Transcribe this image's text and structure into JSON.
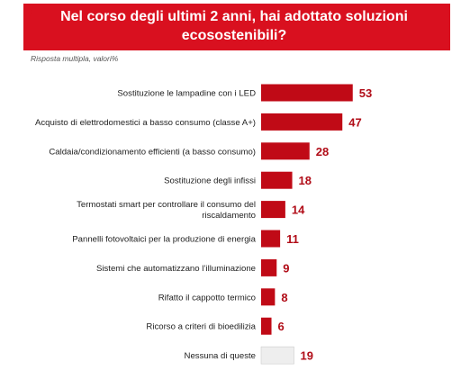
{
  "header": {
    "title": "Nel corso degli ultimi 2 anni, hai adottato soluzioni ecosostenibili?",
    "subtitle": "Risposta multipla, valori%"
  },
  "colors": {
    "banner": "#d9101f",
    "bar": "#c00a16",
    "bar_none": "#eeeeee",
    "value_text": "#b10d18"
  },
  "chart_data": {
    "type": "bar",
    "orientation": "horizontal",
    "title": "Nel corso degli ultimi 2 anni, hai adottato soluzioni ecosostenibili?",
    "subtitle": "Risposta multipla, valori%",
    "categories": [
      "Sostituzione le lampadine con i LED",
      "Acquisto di elettrodomestici a basso consumo (classe A+)",
      "Caldaia/condizionamento efficienti (a basso consumo)",
      "Sostituzione degli infissi",
      "Termostati smart per controllare il consumo del riscaldamento",
      "Pannelli fotovoltaici per la produzione di energia",
      "Sistemi che automatizzano l’illuminazione",
      "Rifatto il cappotto termico",
      "Ricorso a criteri di bioedilizia",
      "Nessuna di queste"
    ],
    "label_lines": [
      [
        "Sostituzione le lampadine con i LED"
      ],
      [
        "Acquisto di elettrodomestici a basso consumo (classe A+)"
      ],
      [
        "Caldaia/condizionamento efficienti (a basso consumo)"
      ],
      [
        "Sostituzione degli infissi"
      ],
      [
        "Termostati smart per controllare il consumo del",
        "riscaldamento"
      ],
      [
        "Pannelli fotovoltaici per la produzione di energia"
      ],
      [
        "Sistemi che automatizzano l’illuminazione"
      ],
      [
        "Rifatto il cappotto termico"
      ],
      [
        "Ricorso a criteri di bioedilizia"
      ],
      [
        "Nessuna di queste"
      ]
    ],
    "values": [
      53,
      47,
      28,
      18,
      14,
      11,
      9,
      8,
      6,
      19
    ],
    "highlight": [
      false,
      false,
      false,
      false,
      false,
      false,
      false,
      false,
      false,
      true
    ],
    "grid": false,
    "legend": "none"
  }
}
